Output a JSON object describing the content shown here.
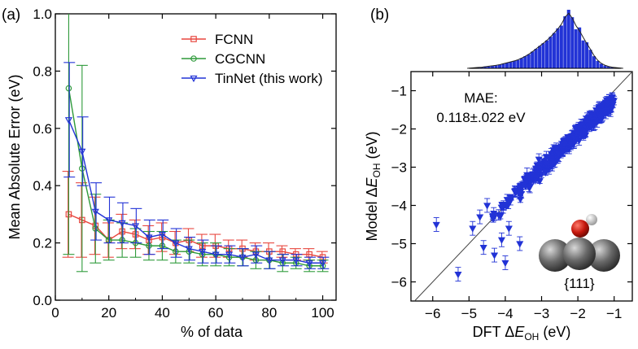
{
  "chart_data": [
    {
      "panel_label": "(a)",
      "type": "line",
      "xlabel": "% of data",
      "ylabel": "Mean Absolute Error (eV)",
      "xlim": [
        0,
        105
      ],
      "ylim": [
        0.0,
        1.0
      ],
      "xticks": [
        0,
        20,
        40,
        60,
        80,
        100
      ],
      "yticks": [
        0.0,
        0.2,
        0.4,
        0.6,
        0.8,
        1.0
      ],
      "xtick_labels": [
        "0",
        "20",
        "40",
        "60",
        "80",
        "100"
      ],
      "ytick_labels": [
        "0.0",
        "0.2",
        "0.4",
        "0.6",
        "0.8",
        "1.0"
      ],
      "legend_position": "top-right",
      "x": [
        5,
        10,
        15,
        20,
        25,
        30,
        35,
        40,
        45,
        50,
        55,
        60,
        65,
        70,
        75,
        80,
        85,
        90,
        95,
        100
      ],
      "series": [
        {
          "name": "FCNN",
          "color": "#e8473f",
          "marker": "square",
          "values": [
            0.3,
            0.28,
            0.26,
            0.21,
            0.24,
            0.23,
            0.21,
            0.22,
            0.2,
            0.21,
            0.19,
            0.19,
            0.18,
            0.18,
            0.17,
            0.17,
            0.17,
            0.16,
            0.16,
            0.15
          ],
          "errors": [
            0.15,
            0.13,
            0.1,
            0.06,
            0.06,
            0.05,
            0.05,
            0.05,
            0.04,
            0.04,
            0.04,
            0.04,
            0.03,
            0.03,
            0.03,
            0.03,
            0.02,
            0.02,
            0.02,
            0.02
          ]
        },
        {
          "name": "CGCNN",
          "color": "#2e9a3a",
          "marker": "circle",
          "values": [
            0.74,
            0.46,
            0.25,
            0.21,
            0.21,
            0.2,
            0.19,
            0.19,
            0.17,
            0.17,
            0.16,
            0.16,
            0.15,
            0.15,
            0.14,
            0.14,
            0.13,
            0.13,
            0.12,
            0.12
          ],
          "errors": [
            0.58,
            0.36,
            0.12,
            0.07,
            0.06,
            0.05,
            0.05,
            0.05,
            0.04,
            0.04,
            0.04,
            0.04,
            0.03,
            0.03,
            0.03,
            0.03,
            0.03,
            0.02,
            0.02,
            0.02
          ]
        },
        {
          "name": "TinNet (this work)",
          "color": "#2233d6",
          "marker": "triangle-down",
          "values": [
            0.63,
            0.52,
            0.31,
            0.28,
            0.27,
            0.26,
            0.22,
            0.23,
            0.2,
            0.18,
            0.17,
            0.16,
            0.16,
            0.15,
            0.16,
            0.14,
            0.14,
            0.14,
            0.13,
            0.13
          ],
          "errors": [
            0.2,
            0.12,
            0.1,
            0.08,
            0.07,
            0.06,
            0.06,
            0.05,
            0.05,
            0.04,
            0.04,
            0.03,
            0.03,
            0.03,
            0.03,
            0.03,
            0.02,
            0.02,
            0.02,
            0.02
          ]
        }
      ]
    },
    {
      "panel_label": "(b)",
      "type": "scatter",
      "xlabel_prefix": "DFT Δ",
      "xlabel_var": "E",
      "xlabel_sub": "OH",
      "xlabel_unit": " (eV)",
      "ylabel_prefix": "Model Δ",
      "ylabel_var": "E",
      "ylabel_sub": "OH",
      "ylabel_unit": " (eV)",
      "xlim": [
        -6.6,
        -0.5
      ],
      "ylim": [
        -6.5,
        -0.5
      ],
      "xticks": [
        -6,
        -5,
        -4,
        -3,
        -2,
        -1
      ],
      "yticks": [
        -6,
        -5,
        -4,
        -3,
        -2,
        -1
      ],
      "xtick_labels": [
        "−6",
        "−5",
        "−4",
        "−3",
        "−2",
        "−1"
      ],
      "ytick_labels": [
        "−6",
        "−5",
        "−4",
        "−3",
        "−2",
        "−1"
      ],
      "annotation_title": "MAE:",
      "annotation_value": "0.118±.022 eV",
      "facet_label": "{111}",
      "color": "#2233d6",
      "marker": "triangle-down",
      "main_trend": {
        "x_start": -4.4,
        "x_end": -1.0,
        "y_start": -4.3,
        "y_end": -1.25,
        "count": 360,
        "spread": 0.17
      },
      "outliers": [
        {
          "x": -5.3,
          "y": -5.8
        },
        {
          "x": -5.9,
          "y": -4.5
        },
        {
          "x": -4.9,
          "y": -4.6
        },
        {
          "x": -4.7,
          "y": -4.3
        },
        {
          "x": -4.6,
          "y": -5.1
        },
        {
          "x": -4.5,
          "y": -4.0
        },
        {
          "x": -4.3,
          "y": -5.3
        },
        {
          "x": -4.1,
          "y": -4.9
        },
        {
          "x": -4.0,
          "y": -5.5
        },
        {
          "x": -3.9,
          "y": -4.6
        },
        {
          "x": -3.6,
          "y": -5.0
        },
        {
          "x": -3.4,
          "y": -3.2
        }
      ],
      "histogram": {
        "bin_centers": [
          -4.75,
          -4.65,
          -4.55,
          -4.45,
          -4.35,
          -4.25,
          -4.15,
          -4.05,
          -3.95,
          -3.85,
          -3.75,
          -3.65,
          -3.55,
          -3.45,
          -3.35,
          -3.25,
          -3.15,
          -3.05,
          -2.95,
          -2.85,
          -2.75,
          -2.65,
          -2.55,
          -2.45,
          -2.35,
          -2.25,
          -2.15,
          -2.05,
          -1.95,
          -1.85,
          -1.75,
          -1.65,
          -1.55,
          -1.45,
          -1.35,
          -1.25,
          -1.15,
          -1.05
        ],
        "counts": [
          1,
          1,
          2,
          2,
          3,
          3,
          4,
          5,
          6,
          7,
          8,
          9,
          11,
          13,
          15,
          18,
          21,
          24,
          27,
          30,
          34,
          38,
          43,
          46,
          56,
          63,
          55,
          42,
          44,
          30,
          28,
          20,
          13,
          8,
          5,
          3,
          2,
          1
        ],
        "bin_width": 0.1
      }
    }
  ]
}
